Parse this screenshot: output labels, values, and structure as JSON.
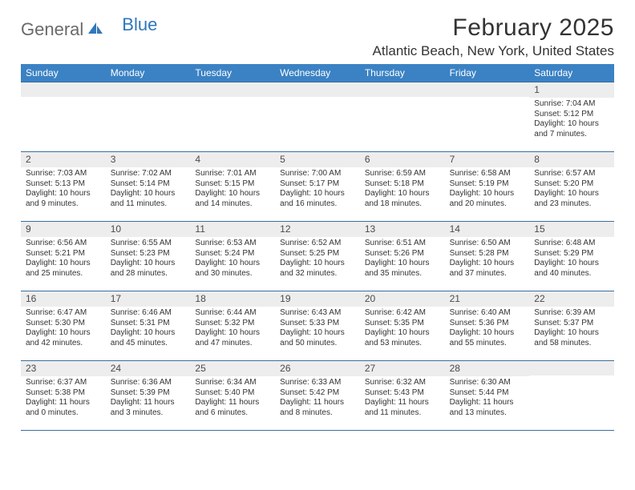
{
  "brand": {
    "general": "General",
    "blue": "Blue"
  },
  "title": "February 2025",
  "location": "Atlantic Beach, New York, United States",
  "colors": {
    "header_bg": "#3b82c4",
    "header_text": "#ffffff",
    "row_border": "#3b6ea0",
    "num_bg": "#ededed",
    "text": "#333333",
    "logo_gray": "#6a6a6a",
    "logo_blue": "#2f77bc",
    "page_bg": "#ffffff"
  },
  "day_names": [
    "Sunday",
    "Monday",
    "Tuesday",
    "Wednesday",
    "Thursday",
    "Friday",
    "Saturday"
  ],
  "weeks": [
    [
      {
        "empty": true
      },
      {
        "empty": true
      },
      {
        "empty": true
      },
      {
        "empty": true
      },
      {
        "empty": true
      },
      {
        "empty": true
      },
      {
        "num": "1",
        "sunrise": "Sunrise: 7:04 AM",
        "sunset": "Sunset: 5:12 PM",
        "daylight1": "Daylight: 10 hours",
        "daylight2": "and 7 minutes."
      }
    ],
    [
      {
        "num": "2",
        "sunrise": "Sunrise: 7:03 AM",
        "sunset": "Sunset: 5:13 PM",
        "daylight1": "Daylight: 10 hours",
        "daylight2": "and 9 minutes."
      },
      {
        "num": "3",
        "sunrise": "Sunrise: 7:02 AM",
        "sunset": "Sunset: 5:14 PM",
        "daylight1": "Daylight: 10 hours",
        "daylight2": "and 11 minutes."
      },
      {
        "num": "4",
        "sunrise": "Sunrise: 7:01 AM",
        "sunset": "Sunset: 5:15 PM",
        "daylight1": "Daylight: 10 hours",
        "daylight2": "and 14 minutes."
      },
      {
        "num": "5",
        "sunrise": "Sunrise: 7:00 AM",
        "sunset": "Sunset: 5:17 PM",
        "daylight1": "Daylight: 10 hours",
        "daylight2": "and 16 minutes."
      },
      {
        "num": "6",
        "sunrise": "Sunrise: 6:59 AM",
        "sunset": "Sunset: 5:18 PM",
        "daylight1": "Daylight: 10 hours",
        "daylight2": "and 18 minutes."
      },
      {
        "num": "7",
        "sunrise": "Sunrise: 6:58 AM",
        "sunset": "Sunset: 5:19 PM",
        "daylight1": "Daylight: 10 hours",
        "daylight2": "and 20 minutes."
      },
      {
        "num": "8",
        "sunrise": "Sunrise: 6:57 AM",
        "sunset": "Sunset: 5:20 PM",
        "daylight1": "Daylight: 10 hours",
        "daylight2": "and 23 minutes."
      }
    ],
    [
      {
        "num": "9",
        "sunrise": "Sunrise: 6:56 AM",
        "sunset": "Sunset: 5:21 PM",
        "daylight1": "Daylight: 10 hours",
        "daylight2": "and 25 minutes."
      },
      {
        "num": "10",
        "sunrise": "Sunrise: 6:55 AM",
        "sunset": "Sunset: 5:23 PM",
        "daylight1": "Daylight: 10 hours",
        "daylight2": "and 28 minutes."
      },
      {
        "num": "11",
        "sunrise": "Sunrise: 6:53 AM",
        "sunset": "Sunset: 5:24 PM",
        "daylight1": "Daylight: 10 hours",
        "daylight2": "and 30 minutes."
      },
      {
        "num": "12",
        "sunrise": "Sunrise: 6:52 AM",
        "sunset": "Sunset: 5:25 PM",
        "daylight1": "Daylight: 10 hours",
        "daylight2": "and 32 minutes."
      },
      {
        "num": "13",
        "sunrise": "Sunrise: 6:51 AM",
        "sunset": "Sunset: 5:26 PM",
        "daylight1": "Daylight: 10 hours",
        "daylight2": "and 35 minutes."
      },
      {
        "num": "14",
        "sunrise": "Sunrise: 6:50 AM",
        "sunset": "Sunset: 5:28 PM",
        "daylight1": "Daylight: 10 hours",
        "daylight2": "and 37 minutes."
      },
      {
        "num": "15",
        "sunrise": "Sunrise: 6:48 AM",
        "sunset": "Sunset: 5:29 PM",
        "daylight1": "Daylight: 10 hours",
        "daylight2": "and 40 minutes."
      }
    ],
    [
      {
        "num": "16",
        "sunrise": "Sunrise: 6:47 AM",
        "sunset": "Sunset: 5:30 PM",
        "daylight1": "Daylight: 10 hours",
        "daylight2": "and 42 minutes."
      },
      {
        "num": "17",
        "sunrise": "Sunrise: 6:46 AM",
        "sunset": "Sunset: 5:31 PM",
        "daylight1": "Daylight: 10 hours",
        "daylight2": "and 45 minutes."
      },
      {
        "num": "18",
        "sunrise": "Sunrise: 6:44 AM",
        "sunset": "Sunset: 5:32 PM",
        "daylight1": "Daylight: 10 hours",
        "daylight2": "and 47 minutes."
      },
      {
        "num": "19",
        "sunrise": "Sunrise: 6:43 AM",
        "sunset": "Sunset: 5:33 PM",
        "daylight1": "Daylight: 10 hours",
        "daylight2": "and 50 minutes."
      },
      {
        "num": "20",
        "sunrise": "Sunrise: 6:42 AM",
        "sunset": "Sunset: 5:35 PM",
        "daylight1": "Daylight: 10 hours",
        "daylight2": "and 53 minutes."
      },
      {
        "num": "21",
        "sunrise": "Sunrise: 6:40 AM",
        "sunset": "Sunset: 5:36 PM",
        "daylight1": "Daylight: 10 hours",
        "daylight2": "and 55 minutes."
      },
      {
        "num": "22",
        "sunrise": "Sunrise: 6:39 AM",
        "sunset": "Sunset: 5:37 PM",
        "daylight1": "Daylight: 10 hours",
        "daylight2": "and 58 minutes."
      }
    ],
    [
      {
        "num": "23",
        "sunrise": "Sunrise: 6:37 AM",
        "sunset": "Sunset: 5:38 PM",
        "daylight1": "Daylight: 11 hours",
        "daylight2": "and 0 minutes."
      },
      {
        "num": "24",
        "sunrise": "Sunrise: 6:36 AM",
        "sunset": "Sunset: 5:39 PM",
        "daylight1": "Daylight: 11 hours",
        "daylight2": "and 3 minutes."
      },
      {
        "num": "25",
        "sunrise": "Sunrise: 6:34 AM",
        "sunset": "Sunset: 5:40 PM",
        "daylight1": "Daylight: 11 hours",
        "daylight2": "and 6 minutes."
      },
      {
        "num": "26",
        "sunrise": "Sunrise: 6:33 AM",
        "sunset": "Sunset: 5:42 PM",
        "daylight1": "Daylight: 11 hours",
        "daylight2": "and 8 minutes."
      },
      {
        "num": "27",
        "sunrise": "Sunrise: 6:32 AM",
        "sunset": "Sunset: 5:43 PM",
        "daylight1": "Daylight: 11 hours",
        "daylight2": "and 11 minutes."
      },
      {
        "num": "28",
        "sunrise": "Sunrise: 6:30 AM",
        "sunset": "Sunset: 5:44 PM",
        "daylight1": "Daylight: 11 hours",
        "daylight2": "and 13 minutes."
      },
      {
        "empty": true
      }
    ]
  ]
}
